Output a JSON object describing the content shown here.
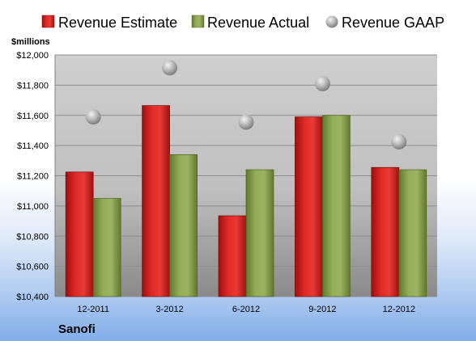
{
  "chart_data": {
    "type": "bar",
    "ylabel": "$millions",
    "company": "Sanofi",
    "categories": [
      "12-2011",
      "3-2012",
      "6-2012",
      "9-2012",
      "12-2012"
    ],
    "series": [
      {
        "name": "Revenue Estimate",
        "kind": "bar",
        "color": "#d8201e",
        "values": [
          11225,
          11665,
          10935,
          11590,
          11255
        ]
      },
      {
        "name": "Revenue Actual",
        "kind": "bar",
        "color": "#8da64e",
        "values": [
          11050,
          11340,
          11240,
          11600,
          11240
        ]
      },
      {
        "name": "Revenue GAAP",
        "kind": "marker",
        "color": "#a8a8a8",
        "values": [
          11590,
          11915,
          11555,
          11810,
          11425
        ]
      }
    ],
    "ylim": [
      10400,
      12000
    ],
    "yticks": [
      10400,
      10600,
      10800,
      11000,
      11200,
      11400,
      11600,
      11800,
      12000
    ],
    "ytick_labels": [
      "$10,400",
      "$10,600",
      "$10,800",
      "$11,000",
      "$11,200",
      "$11,400",
      "$11,600",
      "$11,800",
      "$12,000"
    ],
    "grid": true,
    "legend_position": "top"
  }
}
